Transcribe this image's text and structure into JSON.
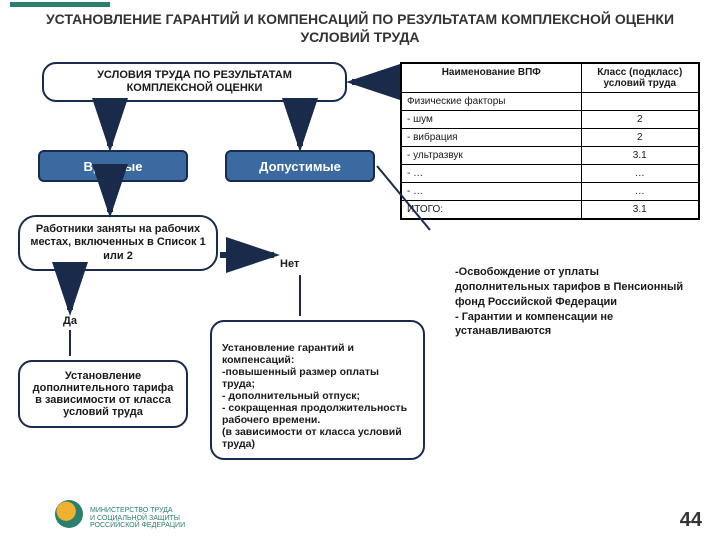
{
  "title": "УСТАНОВЛЕНИЕ ГАРАНТИЙ И КОМПЕНСАЦИЙ ПО РЕЗУЛЬТАТАМ КОМПЛЕКСНОЙ ОЦЕНКИ УСЛОВИЙ ТРУДА",
  "conditions_header": "УСЛОВИЯ ТРУДА ПО РЕЗУЛЬТАТАМ КОМПЛЕКСНОЙ ОЦЕНКИ",
  "harmful": "Вредные",
  "acceptable": "Допустимые",
  "workers_list": "Работники заняты на рабочих местах, включенных в Список 1 или 2",
  "yes": "Да",
  "no": "Нет",
  "set_tariff": "Установление дополнительного тарифа в зависимости от класса условий труда",
  "set_guarantees": "Установление гарантий и компенсаций:\n-повышенный размер оплаты труда;\n- дополнительный отпуск;\n- сокращенная продолжительность рабочего времени.\n(в зависимости от класса условий труда)",
  "table": {
    "headers": [
      "Наименование ВПФ",
      "Класс (подкласс) условий труда"
    ],
    "rows": [
      [
        "Физические факторы",
        ""
      ],
      [
        "- шум",
        "2"
      ],
      [
        "- вибрация",
        "2"
      ],
      [
        "- ультразвук",
        "3.1"
      ],
      [
        "- …",
        "…"
      ],
      [
        "- …",
        "…"
      ],
      [
        "ИТОГО:",
        "3.1"
      ]
    ]
  },
  "note": "-Освобождение от уплаты дополнительных тарифов в Пенсионный фонд Российской Федерации\n- Гарантии и компенсации не устанавливаются",
  "logo_text": "МИНИСТЕРСТВО ТРУДА\nИ СОЦИАЛЬНОЙ ЗАЩИТЫ\nРОССИЙСКОЙ ФЕДЕРАЦИИ",
  "page": "44",
  "colors": {
    "accent": "#2a7f6f",
    "blue": "#3a6a9f",
    "border": "#1a2a4a",
    "arrow": "#1a2a4a"
  }
}
